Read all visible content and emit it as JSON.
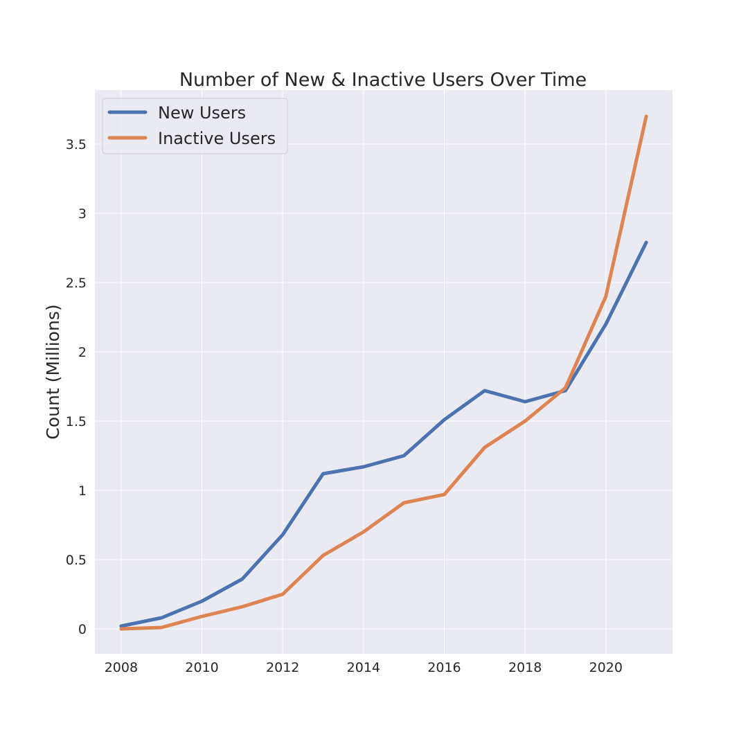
{
  "chart_data": {
    "type": "line",
    "title": "Number of New & Inactive Users Over Time",
    "xlabel": "",
    "ylabel": "Count (Millions)",
    "x": [
      2008,
      2009,
      2010,
      2011,
      2012,
      2013,
      2014,
      2015,
      2016,
      2017,
      2018,
      2019,
      2020,
      2021
    ],
    "series": [
      {
        "name": "New Users",
        "color": "#4c72b0",
        "values": [
          0.02,
          0.08,
          0.2,
          0.36,
          0.68,
          1.12,
          1.17,
          1.25,
          1.51,
          1.72,
          1.64,
          1.72,
          2.2,
          2.79
        ]
      },
      {
        "name": "Inactive Users",
        "color": "#dd8452",
        "values": [
          0.0,
          0.01,
          0.09,
          0.16,
          0.25,
          0.53,
          0.7,
          0.91,
          0.97,
          1.31,
          1.5,
          1.74,
          2.4,
          3.7
        ]
      }
    ],
    "xticks": [
      "2008",
      "2010",
      "2012",
      "2014",
      "2016",
      "2018",
      "2020"
    ],
    "yticks": [
      "0",
      "0.5",
      "1",
      "1.5",
      "2",
      "2.5",
      "3",
      "3.5"
    ],
    "xlim": [
      2007.35,
      2021.65
    ],
    "ylim": [
      -0.18,
      3.89
    ],
    "grid": true,
    "legend_position": "top-left",
    "background_color": "#eaeaf2",
    "grid_color": "#ffffff"
  }
}
